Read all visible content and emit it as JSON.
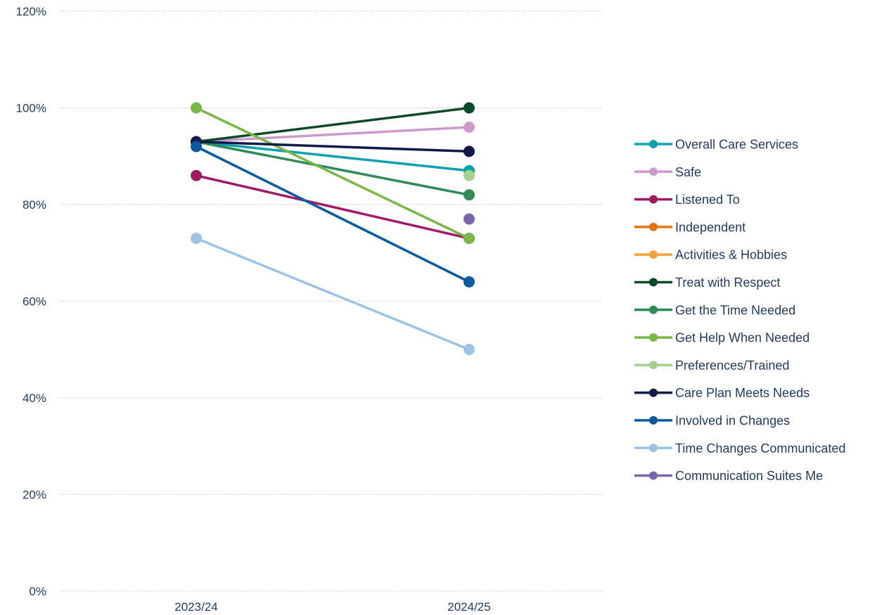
{
  "chart_data": {
    "type": "line",
    "title": "",
    "xlabel": "",
    "ylabel": "",
    "x": [
      "2023/24",
      "2024/25"
    ],
    "ylim": [
      0,
      120
    ],
    "yticks": [
      "0%",
      "20%",
      "40%",
      "60%",
      "80%",
      "100%",
      "120%"
    ],
    "ytick_values": [
      0,
      20,
      40,
      60,
      80,
      100,
      120
    ],
    "grid": true,
    "legend_position": "right",
    "series": [
      {
        "name": "Overall Care Services",
        "color": "#0aa0ac",
        "values": [
          93,
          87
        ]
      },
      {
        "name": "Safe",
        "color": "#cc9bcc",
        "values": [
          93,
          96
        ]
      },
      {
        "name": "Listened To",
        "color": "#9e1b64",
        "values": [
          86,
          73
        ]
      },
      {
        "name": "Independent",
        "color": "#e8730c",
        "values": [
          null,
          null
        ]
      },
      {
        "name": "Activities & Hobbies",
        "color": "#f2a23a",
        "values": [
          null,
          null
        ]
      },
      {
        "name": "Treat with Respect",
        "color": "#0b4a28",
        "values": [
          93,
          100
        ]
      },
      {
        "name": "Get the Time Needed",
        "color": "#2e8b57",
        "values": [
          93,
          82
        ]
      },
      {
        "name": "Get Help When Needed",
        "color": "#7ab648",
        "values": [
          100,
          73
        ]
      },
      {
        "name": "Preferences/Trained",
        "color": "#a8d08d",
        "values": [
          null,
          86
        ]
      },
      {
        "name": "Care Plan Meets Needs",
        "color": "#101a4a",
        "values": [
          93,
          91
        ]
      },
      {
        "name": "Involved in Changes",
        "color": "#0b5aa0",
        "values": [
          92,
          64
        ]
      },
      {
        "name": "Time Changes Communicated",
        "color": "#9cc3e6",
        "values": [
          73,
          50
        ]
      },
      {
        "name": "Communication Suites Me",
        "color": "#7e63ad",
        "values": [
          null,
          77
        ]
      }
    ]
  }
}
